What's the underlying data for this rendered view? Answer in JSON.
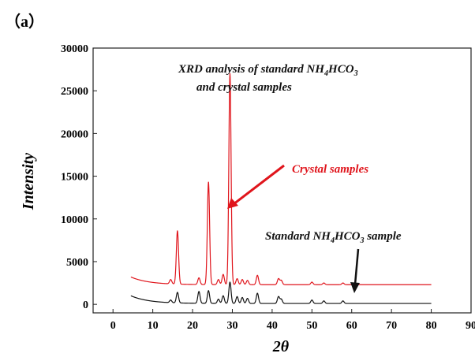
{
  "panel_label": "（a）",
  "chart_data": {
    "type": "line",
    "title": "",
    "xlabel": "2θ",
    "ylabel": "Intensity",
    "xlim": [
      -5,
      90
    ],
    "ylim": [
      -1000,
      30000
    ],
    "xticks": [
      0,
      10,
      20,
      30,
      40,
      50,
      60,
      70,
      80,
      90
    ],
    "yticks": [
      0,
      5000,
      10000,
      15000,
      20000,
      25000,
      30000
    ],
    "grid": false,
    "annotations": {
      "title_line1": {
        "pre": "XRD analysis of standard NH",
        "sub1": "4",
        "mid": "HCO",
        "sub2": "3"
      },
      "title_line2": "and crystal samples",
      "crystal_label": "Crystal samples",
      "standard_label": {
        "pre": "Standard NH",
        "sub1": "4",
        "mid": "HCO",
        "sub2": "3",
        "post": " sample"
      }
    },
    "series": [
      {
        "color": "#e0151c",
        "baseline": 2300,
        "start": {
          "x": 4.5,
          "y": 3200
        },
        "end_x": 80,
        "peaks": [
          {
            "x": 14.5,
            "y": 2900
          },
          {
            "x": 16.2,
            "y": 8600
          },
          {
            "x": 21.6,
            "y": 3100
          },
          {
            "x": 24.0,
            "y": 14300
          },
          {
            "x": 26.5,
            "y": 2900
          },
          {
            "x": 27.7,
            "y": 3500
          },
          {
            "x": 29.4,
            "y": 27000
          },
          {
            "x": 31.2,
            "y": 3000
          },
          {
            "x": 32.5,
            "y": 2900
          },
          {
            "x": 33.8,
            "y": 2800
          },
          {
            "x": 36.3,
            "y": 3400
          },
          {
            "x": 41.6,
            "y": 3000
          },
          {
            "x": 42.3,
            "y": 2800
          },
          {
            "x": 50.0,
            "y": 2600
          },
          {
            "x": 53.0,
            "y": 2500
          },
          {
            "x": 57.8,
            "y": 2500
          }
        ]
      },
      {
        "color": "#111111",
        "baseline": 100,
        "start": {
          "x": 4.5,
          "y": 1000
        },
        "end_x": 80,
        "peaks": [
          {
            "x": 14.5,
            "y": 500
          },
          {
            "x": 16.2,
            "y": 1400
          },
          {
            "x": 21.6,
            "y": 1500
          },
          {
            "x": 24.0,
            "y": 1600
          },
          {
            "x": 26.5,
            "y": 600
          },
          {
            "x": 27.7,
            "y": 1000
          },
          {
            "x": 29.4,
            "y": 2600
          },
          {
            "x": 31.2,
            "y": 900
          },
          {
            "x": 32.5,
            "y": 800
          },
          {
            "x": 33.8,
            "y": 700
          },
          {
            "x": 36.3,
            "y": 1300
          },
          {
            "x": 41.6,
            "y": 900
          },
          {
            "x": 42.3,
            "y": 600
          },
          {
            "x": 50.0,
            "y": 500
          },
          {
            "x": 53.0,
            "y": 400
          },
          {
            "x": 57.8,
            "y": 400
          }
        ]
      }
    ]
  }
}
